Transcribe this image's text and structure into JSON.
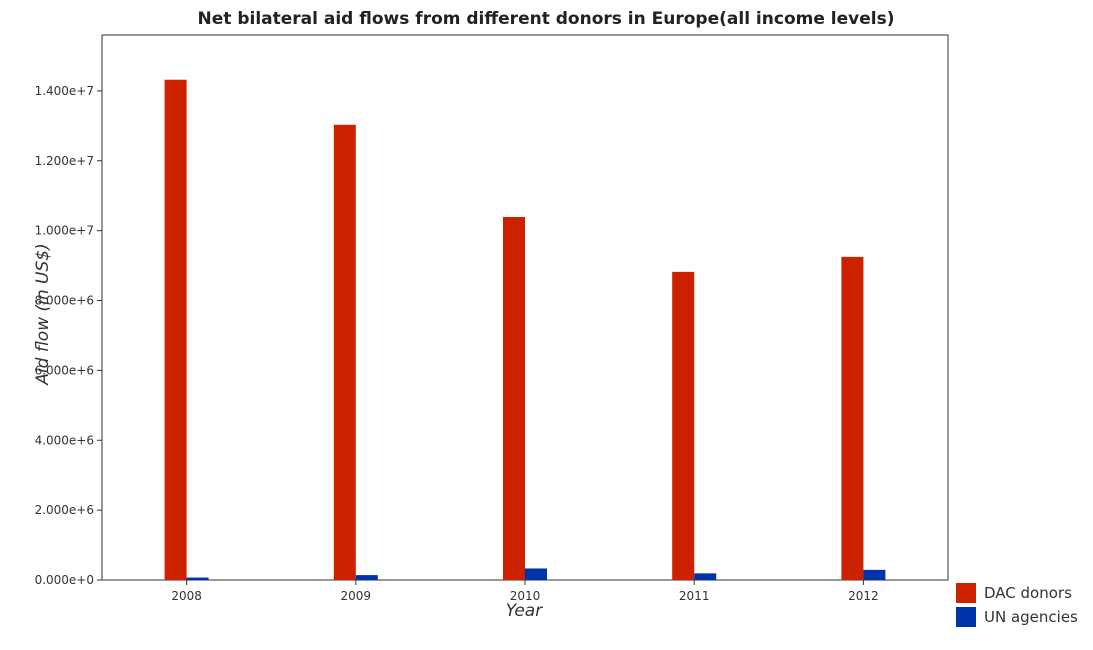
{
  "chart_data": {
    "type": "bar",
    "title": "Net bilateral aid flows from different donors in Europe(all income levels)",
    "xlabel": "Year",
    "ylabel": "Aid flow (in US$)",
    "categories": [
      "2008",
      "2009",
      "2010",
      "2011",
      "2012"
    ],
    "series": [
      {
        "name": "DAC donors",
        "color": "#cc2200",
        "values": [
          14320000,
          13030000,
          10390000,
          8820000,
          9250000
        ]
      },
      {
        "name": "UN agencies",
        "color": "#0033aa",
        "values": [
          70000,
          140000,
          330000,
          190000,
          290000
        ]
      }
    ],
    "ylim": [
      0,
      15600000
    ],
    "yticks": [
      0,
      2000000,
      4000000,
      6000000,
      8000000,
      10000000,
      12000000,
      14000000
    ],
    "ytick_labels": [
      "0.000e+0",
      "2.000e+6",
      "4.000e+6",
      "6.000e+6",
      "8.000e+6",
      "1.000e+7",
      "1.200e+7",
      "1.400e+7"
    ],
    "legend_position": "bottom-right",
    "grid": false
  }
}
